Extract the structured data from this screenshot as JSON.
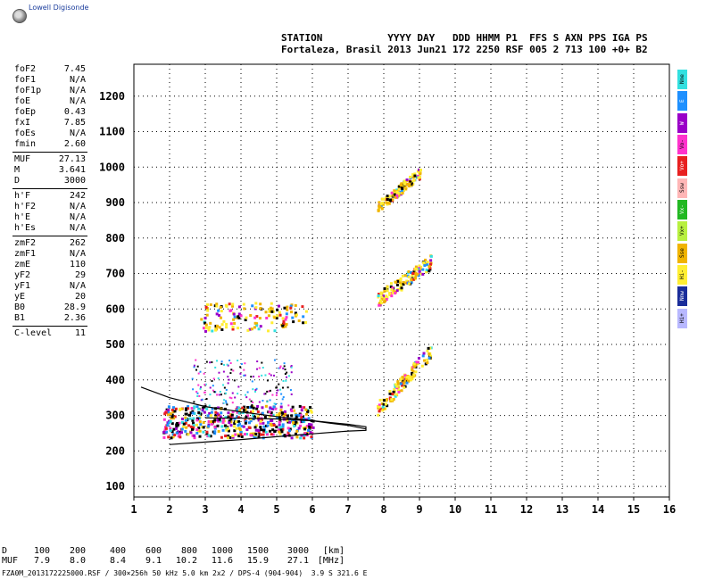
{
  "logo_text": "Lowell Digisonde",
  "header": {
    "line1": "STATION           YYYY DAY   DDD HHMM P1  FFS S AXN PPS IGA PS",
    "line2": "Fortaleza, Brasil 2013 Jun21 172 2250 RSF 005 2 713 100 +0+ B2"
  },
  "params": [
    {
      "name": "foF2",
      "value": "7.45"
    },
    {
      "name": "foF1",
      "value": "N/A"
    },
    {
      "name": "foF1p",
      "value": "N/A"
    },
    {
      "name": "foE",
      "value": "N/A"
    },
    {
      "name": "foEp",
      "value": "0.43"
    },
    {
      "name": "fxI",
      "value": "7.85"
    },
    {
      "name": "foEs",
      "value": "N/A"
    },
    {
      "name": "fmin",
      "value": "2.60"
    },
    {
      "sep": true
    },
    {
      "name": "MUF",
      "value": "27.13"
    },
    {
      "name": "M",
      "value": "3.641"
    },
    {
      "name": "D",
      "value": "3000"
    },
    {
      "sep": true
    },
    {
      "name": "h'F",
      "value": "242"
    },
    {
      "name": "h'F2",
      "value": "N/A"
    },
    {
      "name": "h'E",
      "value": "N/A"
    },
    {
      "name": "h'Es",
      "value": "N/A"
    },
    {
      "sep": true
    },
    {
      "name": "zmF2",
      "value": "262"
    },
    {
      "name": "zmF1",
      "value": "N/A"
    },
    {
      "name": "zmE",
      "value": "110"
    },
    {
      "name": "yF2",
      "value": "29"
    },
    {
      "name": "yF1",
      "value": "N/A"
    },
    {
      "name": "yE",
      "value": "20"
    },
    {
      "name": "B0",
      "value": "28.9"
    },
    {
      "name": "B1",
      "value": "2.36"
    },
    {
      "sep": true
    },
    {
      "name": "C-level",
      "value": "11"
    }
  ],
  "legend": [
    {
      "label": "Nne",
      "color": "#33e0e0"
    },
    {
      "label": "E",
      "color": "#1e90ff"
    },
    {
      "label": "W",
      "color": "#9a00c8"
    },
    {
      "label": "Vo-",
      "color": "#ff33cc"
    },
    {
      "label": "Vo+",
      "color": "#e82020"
    },
    {
      "label": "Ssw",
      "color": "#ffb6b6"
    },
    {
      "label": "Vx-",
      "color": "#22b822"
    },
    {
      "label": "Vx+",
      "color": "#b8f040"
    },
    {
      "label": "Sse",
      "color": "#f0b400"
    },
    {
      "label": "Hi-",
      "color": "#ffee33"
    },
    {
      "label": "Nnw",
      "color": "#1a2d9a"
    },
    {
      "label": "Hi+",
      "color": "#b8b8ff"
    }
  ],
  "muf_table": {
    "d_label": "D",
    "muf_label": "MUF",
    "d_values": [
      "100",
      "200",
      "400",
      "600",
      "800",
      "1000",
      "1500",
      "3000",
      "[km]"
    ],
    "muf_values": [
      "7.9",
      "8.0",
      "8.4",
      "9.1",
      "10.2",
      "11.6",
      "15.9",
      "27.1",
      "[MHz]"
    ]
  },
  "footer": "FZA0M_2013172225000.RSF / 300×256h 50 kHz 5.0 km 2x2 / DPS-4 (904-904)  3.9 S 321.6 E",
  "chart_data": {
    "type": "scatter",
    "title": "",
    "xlabel": "",
    "ylabel": "",
    "xlim": [
      1,
      16
    ],
    "ylim": [
      70,
      1290
    ],
    "x_ticks": [
      1,
      2,
      3,
      4,
      5,
      6,
      7,
      8,
      9,
      10,
      11,
      12,
      13,
      14,
      15,
      16
    ],
    "y_ticks": [
      100,
      200,
      300,
      400,
      500,
      600,
      700,
      800,
      900,
      1000,
      1100,
      1200
    ],
    "grid": true,
    "traces": [
      {
        "name": "virtual-height-trace",
        "points": [
          [
            1.2,
            380
          ],
          [
            2,
            350
          ],
          [
            3,
            325
          ],
          [
            4,
            310
          ],
          [
            5,
            297
          ],
          [
            6,
            285
          ],
          [
            6.5,
            278
          ],
          [
            7,
            272
          ],
          [
            7.2,
            268
          ],
          [
            7.5,
            262
          ]
        ]
      },
      {
        "name": "lower-trace",
        "points": [
          [
            2,
            218
          ],
          [
            3,
            225
          ],
          [
            4,
            232
          ],
          [
            5,
            240
          ],
          [
            6,
            248
          ],
          [
            7,
            256
          ],
          [
            7.5,
            258
          ],
          [
            7.5,
            268
          ],
          [
            7,
            275
          ],
          [
            6,
            285
          ],
          [
            5,
            290
          ],
          [
            4,
            292
          ],
          [
            3,
            293
          ]
        ]
      }
    ],
    "echo_regions": [
      {
        "region": "O-trace F",
        "x": [
          7.8,
          9.3
        ],
        "y": [
          320,
          500
        ]
      },
      {
        "region": "spread F low",
        "x": [
          1.8,
          6.0
        ],
        "y": [
          240,
          330
        ]
      },
      {
        "region": "2nd hop",
        "x": [
          2.8,
          5.8
        ],
        "y": [
          540,
          620
        ]
      },
      {
        "region": "2nd hop high f",
        "x": [
          7.8,
          9.3
        ],
        "y": [
          620,
          760
        ]
      },
      {
        "region": "3rd hop",
        "x": [
          7.8,
          9.0
        ],
        "y": [
          880,
          1000
        ]
      }
    ]
  }
}
